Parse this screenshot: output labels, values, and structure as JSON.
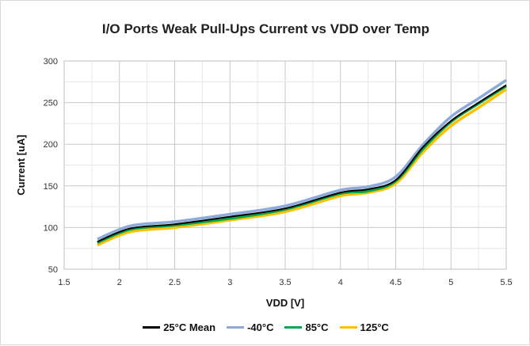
{
  "chart_data": {
    "type": "line",
    "title": "I/O Ports Weak Pull-Ups  Current vs VDD over Temp",
    "xlabel": "VDD [V]",
    "ylabel": "Current [uA]",
    "xlim": [
      1.5,
      5.5
    ],
    "ylim": [
      50,
      300
    ],
    "xticks": [
      "1.5",
      "2",
      "2.5",
      "3",
      "3.5",
      "4",
      "4.5",
      "5",
      "5.5"
    ],
    "yticks": [
      "50",
      "100",
      "150",
      "200",
      "250",
      "300"
    ],
    "grid": true,
    "legend_position": "bottom",
    "x": [
      1.8,
      2.1,
      2.5,
      3.0,
      3.5,
      4.0,
      4.25,
      4.5,
      4.75,
      5.0,
      5.25,
      5.5
    ],
    "series": [
      {
        "name": "-40°C",
        "color": "#8eaadb",
        "values": [
          86,
          102,
          107,
          116,
          126,
          145,
          149,
          161,
          200,
          233,
          255,
          277
        ]
      },
      {
        "name": "125°C",
        "color": "#ffc000",
        "values": [
          79,
          95,
          100,
          109,
          119,
          138,
          142,
          153,
          191,
          222,
          244,
          266
        ]
      },
      {
        "name": "85°C",
        "color": "#00a650",
        "values": [
          82,
          98,
          103,
          111,
          122,
          141,
          144,
          156,
          195,
          227,
          249,
          270
        ]
      },
      {
        "name": "25°C Mean",
        "color": "#000000",
        "values": [
          83,
          99,
          104,
          113,
          123,
          142,
          146,
          157,
          197,
          228,
          250,
          271
        ]
      }
    ],
    "legend_order": [
      "25°C Mean",
      "-40°C",
      "85°C",
      "125°C"
    ]
  }
}
